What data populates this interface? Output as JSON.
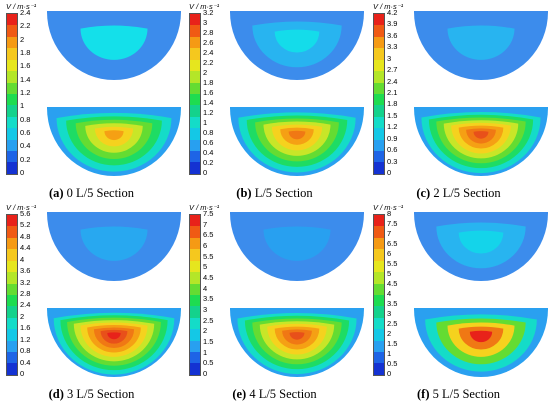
{
  "legend_title": "V / m·s⁻¹",
  "legend_colors": [
    "#e8221a",
    "#f05a14",
    "#f59a14",
    "#f5c81e",
    "#e6e61e",
    "#b4e628",
    "#64dc32",
    "#1edc50",
    "#14d28c",
    "#14dcc8",
    "#14c8e6",
    "#28a0f0",
    "#1e64e6",
    "#1432d2"
  ],
  "panels": [
    {
      "label": "(a)",
      "title": "0 L/5 Section",
      "ticks": [
        "2.4",
        "2.2",
        "2",
        "1.8",
        "1.6",
        "1.4",
        "1.2",
        "1",
        "0.8",
        "0.6",
        "0.4",
        "0.2",
        "0"
      ],
      "top_colors": [
        "#3c8cec",
        "#14e0ea"
      ],
      "bottom_colors": [
        "#2aa0f0",
        "#14dcc8",
        "#1edc64",
        "#64dc32",
        "#c8e628",
        "#f5d21e",
        "#f5a014"
      ]
    },
    {
      "label": "(b)",
      "title": "L/5 Section",
      "ticks": [
        "3.2",
        "3",
        "2.8",
        "2.6",
        "2.4",
        "2.2",
        "2",
        "1.8",
        "1.6",
        "1.4",
        "1.2",
        "1",
        "0.8",
        "0.6",
        "0.4",
        "0.2",
        "0"
      ],
      "top_colors": [
        "#3c8cec",
        "#28b4f0",
        "#14dcea"
      ],
      "bottom_colors": [
        "#2aa0f0",
        "#14dcc8",
        "#1edc64",
        "#64dc32",
        "#c8e628",
        "#f5d21e",
        "#f5a014",
        "#f07814"
      ]
    },
    {
      "label": "(c)",
      "title": "2 L/5 Section",
      "ticks": [
        "4.2",
        "3.9",
        "3.6",
        "3.3",
        "3",
        "2.7",
        "2.4",
        "2.1",
        "1.8",
        "1.5",
        "1.2",
        "0.9",
        "0.6",
        "0.3",
        "0"
      ],
      "top_colors": [
        "#3c8cec",
        "#28b4f0"
      ],
      "bottom_colors": [
        "#2aa0f0",
        "#14dcc8",
        "#1edc64",
        "#64dc32",
        "#c8e628",
        "#f5d21e",
        "#f5a014",
        "#f07814",
        "#e8501a"
      ]
    },
    {
      "label": "(d)",
      "title": "3 L/5 Section",
      "ticks": [
        "5.6",
        "5.2",
        "4.8",
        "4.4",
        "4",
        "3.6",
        "3.2",
        "2.8",
        "2.4",
        "2",
        "1.6",
        "1.2",
        "0.8",
        "0.4",
        "0"
      ],
      "top_colors": [
        "#3c8cec",
        "#28a8f0"
      ],
      "bottom_colors": [
        "#2aa0f0",
        "#14dcc8",
        "#1edc64",
        "#64dc32",
        "#c8e628",
        "#f5d21e",
        "#f5a014",
        "#f07814",
        "#e8501a",
        "#e8221a"
      ]
    },
    {
      "label": "(e)",
      "title": "4 L/5 Section",
      "ticks": [
        "7.5",
        "7",
        "6.5",
        "6",
        "5.5",
        "5",
        "4.5",
        "4",
        "3.5",
        "3",
        "2.5",
        "2",
        "1.5",
        "1",
        "0.5",
        "0"
      ],
      "top_colors": [
        "#3c8cec",
        "#28a0f0"
      ],
      "bottom_colors": [
        "#2aa0f0",
        "#14dcc8",
        "#1edc64",
        "#64dc32",
        "#c8e628",
        "#f5d21e",
        "#f5a014",
        "#f07814",
        "#e8501a"
      ]
    },
    {
      "label": "(f)",
      "title": "5 L/5 Section",
      "ticks": [
        "8",
        "7.5",
        "7",
        "6.5",
        "6",
        "5.5",
        "5",
        "4.5",
        "4",
        "3.5",
        "3",
        "2.5",
        "2",
        "1.5",
        "1",
        "0.5",
        "0"
      ],
      "top_colors": [
        "#3c8cec",
        "#28b4f0",
        "#14d4ea"
      ],
      "bottom_colors": [
        "#2aa0f0",
        "#14dcc8",
        "#64dc32",
        "#f5d21e",
        "#f07814",
        "#e8221a"
      ]
    }
  ]
}
